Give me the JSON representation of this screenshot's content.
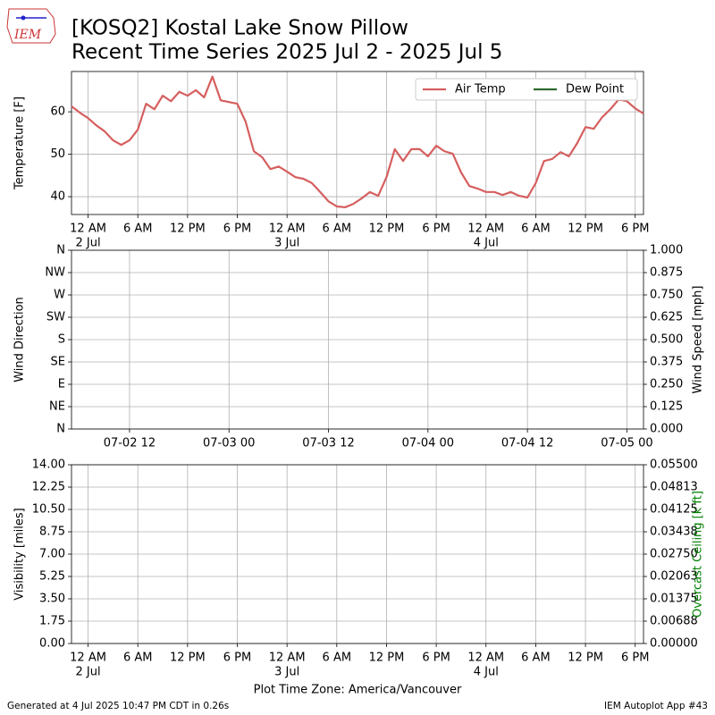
{
  "title": "[KOSQ2] Kostal Lake Snow Pillow",
  "subtitle": "Recent Time Series 2025 Jul 2 - 2025 Jul 5",
  "logo_text": "IEM",
  "footer_left": "Generated at 4 Jul 2025 10:47 PM CDT in 0.26s",
  "footer_right": "IEM Autoplot App #43",
  "chart_data": [
    {
      "type": "line",
      "ylabel": "Temperature [F]",
      "grid": true,
      "legend": "upper right",
      "x": [
        -2,
        -1,
        0,
        1,
        2,
        3,
        4,
        5,
        6,
        7,
        8,
        9,
        10,
        11,
        12,
        13,
        14,
        15,
        16,
        17,
        18,
        19,
        20,
        21,
        22,
        23,
        24,
        25,
        26,
        27,
        28,
        29,
        30,
        31,
        32,
        33,
        34,
        35,
        36,
        37,
        38,
        39,
        40,
        41,
        42,
        43,
        44,
        45,
        46,
        47,
        48,
        49,
        50,
        51,
        52,
        53,
        54,
        55,
        56,
        57,
        58,
        59,
        60,
        61,
        62,
        63,
        64,
        65,
        66,
        67
      ],
      "xlim": [
        -2,
        67
      ],
      "xticks": [
        {
          "value": 0,
          "label": "12 AM",
          "date": "2 Jul"
        },
        {
          "value": 6,
          "label": "6 AM"
        },
        {
          "value": 12,
          "label": "12 PM"
        },
        {
          "value": 18,
          "label": "6 PM"
        },
        {
          "value": 24,
          "label": "12 AM",
          "date": "3 Jul"
        },
        {
          "value": 30,
          "label": "6 AM"
        },
        {
          "value": 36,
          "label": "12 PM"
        },
        {
          "value": 42,
          "label": "6 PM"
        },
        {
          "value": 48,
          "label": "12 AM",
          "date": "4 Jul"
        },
        {
          "value": 54,
          "label": "6 AM"
        },
        {
          "value": 60,
          "label": "12 PM"
        },
        {
          "value": 66,
          "label": "6 PM"
        }
      ],
      "ylim": [
        35.8,
        69.5
      ],
      "yticks": [
        40,
        50,
        60
      ],
      "series": [
        {
          "name": "Air Temp",
          "color": "#d65f5f",
          "values": [
            61.3,
            59.8,
            58.5,
            56.8,
            55.4,
            53.3,
            52.2,
            53.3,
            55.8,
            61.9,
            60.6,
            63.8,
            62.5,
            64.7,
            63.8,
            65.1,
            63.4,
            68.3,
            62.7,
            62.3,
            61.9,
            57.7,
            50.7,
            49.3,
            46.5,
            47.1,
            45.9,
            44.6,
            44.2,
            43.2,
            41.1,
            38.9,
            37.7,
            37.5,
            38.3,
            39.6,
            41.1,
            40.2,
            44.6,
            51.2,
            48.4,
            51.2,
            51.2,
            49.5,
            52.0,
            50.7,
            50.1,
            45.7,
            42.5,
            41.9,
            41.1,
            41.1,
            40.4,
            41.1,
            40.2,
            39.8,
            43.2,
            48.4,
            48.9,
            50.5,
            49.5,
            52.6,
            56.4,
            56.0,
            58.7,
            60.6,
            62.9,
            62.5,
            60.8,
            59.6
          ]
        },
        {
          "name": "Dew Point",
          "color": "#2d6a2d",
          "values": [
            null,
            null,
            null,
            null,
            null,
            null,
            null,
            null,
            null,
            null,
            null,
            null,
            null,
            null,
            null,
            null,
            null,
            null,
            null,
            null,
            null,
            null,
            null,
            null,
            null,
            null,
            null,
            null,
            null,
            null,
            null,
            null,
            null,
            null,
            null,
            null,
            null,
            null,
            null,
            null,
            null,
            null,
            null,
            null,
            null,
            null,
            null,
            null,
            null,
            null,
            null,
            null,
            null,
            null,
            null,
            null,
            null,
            null,
            null,
            null,
            null,
            null,
            null,
            null,
            null,
            null,
            null,
            null,
            null,
            null
          ]
        }
      ]
    },
    {
      "type": "line",
      "ylabel": "Wind Direction",
      "y2label": "Wind Speed [mph]",
      "grid": true,
      "xlim": [
        5,
        74
      ],
      "xticks": [
        {
          "value": 12,
          "label": "07-02 12"
        },
        {
          "value": 24,
          "label": "07-03 00"
        },
        {
          "value": 36,
          "label": "07-03 12"
        },
        {
          "value": 48,
          "label": "07-04 00"
        },
        {
          "value": 60,
          "label": "07-04 12"
        },
        {
          "value": 72,
          "label": "07-05 00"
        }
      ],
      "ylim": [
        0,
        360
      ],
      "yticks": [
        {
          "value": 0,
          "label": "N"
        },
        {
          "value": 45,
          "label": "NE"
        },
        {
          "value": 90,
          "label": "E"
        },
        {
          "value": 135,
          "label": "SE"
        },
        {
          "value": 180,
          "label": "S"
        },
        {
          "value": 225,
          "label": "SW"
        },
        {
          "value": 270,
          "label": "W"
        },
        {
          "value": 315,
          "label": "NW"
        },
        {
          "value": 360,
          "label": "N"
        }
      ],
      "y2lim": [
        0,
        1
      ],
      "y2ticks": [
        {
          "value": 0,
          "label": "0.000"
        },
        0.125,
        {
          "value": 0.25,
          "label": "0.250"
        },
        0.375,
        {
          "value": 0.5,
          "label": "0.500"
        },
        0.625,
        {
          "value": 0.75,
          "label": "0.750"
        },
        0.875,
        {
          "value": 1,
          "label": "1.000"
        }
      ]
    },
    {
      "type": "line",
      "ylabel": "Visibility [miles]",
      "y2label": "Overcast Ceiling [k ft]",
      "y2label_color": "#008000",
      "xlabel": "Plot Time Zone: America/Vancouver",
      "grid": true,
      "xlim": [
        -2,
        67
      ],
      "xticks": [
        {
          "value": 0,
          "label": "12 AM",
          "date": "2 Jul"
        },
        {
          "value": 6,
          "label": "6 AM"
        },
        {
          "value": 12,
          "label": "12 PM"
        },
        {
          "value": 18,
          "label": "6 PM"
        },
        {
          "value": 24,
          "label": "12 AM",
          "date": "3 Jul"
        },
        {
          "value": 30,
          "label": "6 AM"
        },
        {
          "value": 36,
          "label": "12 PM"
        },
        {
          "value": 42,
          "label": "6 PM"
        },
        {
          "value": 48,
          "label": "12 AM",
          "date": "4 Jul"
        },
        {
          "value": 54,
          "label": "6 AM"
        },
        {
          "value": 60,
          "label": "12 PM"
        },
        {
          "value": 66,
          "label": "6 PM"
        }
      ],
      "ylim": [
        0,
        14
      ],
      "yticks": [
        {
          "value": 0,
          "label": "0.00"
        },
        1.75,
        {
          "value": 3.5,
          "label": "3.50"
        },
        5.25,
        {
          "value": 7,
          "label": "7.00"
        },
        8.75,
        {
          "value": 10.5,
          "label": "10.50"
        },
        12.25,
        {
          "value": 14,
          "label": "14.00"
        }
      ],
      "y2lim": [
        0,
        0.055
      ],
      "y2ticks": [
        {
          "value": 0,
          "label": "0.00000"
        },
        {
          "value": 0.006875,
          "label": "0.00688"
        },
        0.01375,
        {
          "value": 0.020625,
          "label": "0.02063"
        },
        {
          "value": 0.0275,
          "label": "0.02750"
        },
        {
          "value": 0.034375,
          "label": "0.03438"
        },
        0.04125,
        {
          "value": 0.048125,
          "label": "0.04813"
        },
        {
          "value": 0.055,
          "label": "0.05500"
        }
      ]
    }
  ]
}
